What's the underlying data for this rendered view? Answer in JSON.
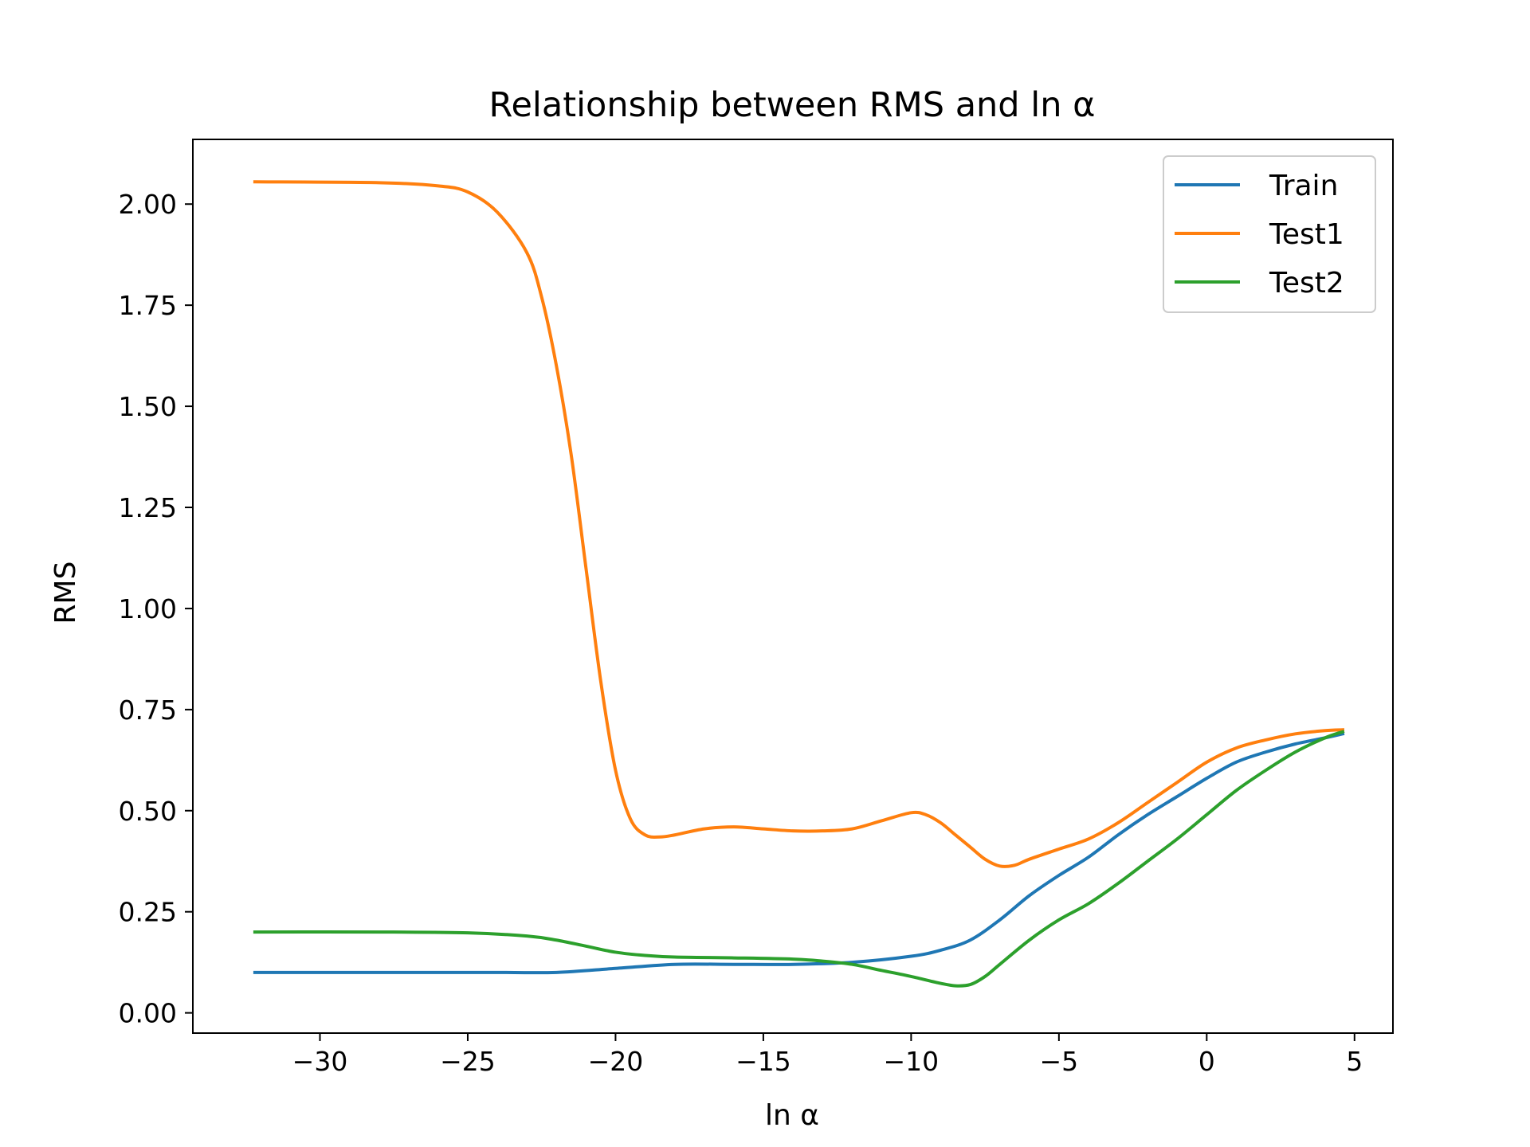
{
  "chart_data": {
    "type": "line",
    "title": "Relationship between RMS and ln α",
    "xlabel": "ln α",
    "ylabel": "RMS",
    "xlim": [
      -34.3,
      6.3
    ],
    "ylim": [
      -0.05,
      2.16
    ],
    "xticks": [
      -30,
      -25,
      -20,
      -15,
      -10,
      -5,
      0,
      5
    ],
    "xtick_labels": [
      "−30",
      "−25",
      "−20",
      "−15",
      "−10",
      "−5",
      "0",
      "5"
    ],
    "yticks": [
      0.0,
      0.25,
      0.5,
      0.75,
      1.0,
      1.25,
      1.5,
      1.75,
      2.0
    ],
    "ytick_labels": [
      "0.00",
      "0.25",
      "0.50",
      "0.75",
      "1.00",
      "1.25",
      "1.50",
      "1.75",
      "2.00"
    ],
    "grid": false,
    "legend_position": "top-right",
    "series": [
      {
        "name": "Train",
        "color": "#1f77b4",
        "x": [
          -32.2,
          -28,
          -24,
          -22,
          -20,
          -18,
          -16,
          -14,
          -12,
          -10,
          -9,
          -8,
          -7,
          -6,
          -5,
          -4,
          -3,
          -2,
          -1,
          0,
          1,
          2,
          3,
          4,
          4.6
        ],
        "y": [
          0.1,
          0.1,
          0.1,
          0.1,
          0.11,
          0.12,
          0.12,
          0.12,
          0.125,
          0.14,
          0.155,
          0.18,
          0.23,
          0.29,
          0.34,
          0.385,
          0.44,
          0.49,
          0.535,
          0.58,
          0.62,
          0.645,
          0.665,
          0.68,
          0.69
        ]
      },
      {
        "name": "Test1",
        "color": "#ff7f0e",
        "x": [
          -32.2,
          -28,
          -26,
          -25,
          -24,
          -23,
          -22.5,
          -22,
          -21.5,
          -21,
          -20.5,
          -20,
          -19.5,
          -19,
          -18.5,
          -18,
          -17,
          -16,
          -15,
          -14,
          -13,
          -12,
          -11,
          -10,
          -9.5,
          -9,
          -8.5,
          -8,
          -7.5,
          -7,
          -6.5,
          -6,
          -5,
          -4,
          -3,
          -2,
          -1,
          0,
          1,
          2,
          3,
          4,
          4.6
        ],
        "y": [
          2.055,
          2.053,
          2.045,
          2.03,
          1.98,
          1.88,
          1.77,
          1.6,
          1.38,
          1.1,
          0.82,
          0.6,
          0.48,
          0.44,
          0.435,
          0.44,
          0.455,
          0.46,
          0.455,
          0.45,
          0.45,
          0.455,
          0.475,
          0.495,
          0.49,
          0.47,
          0.44,
          0.41,
          0.38,
          0.363,
          0.365,
          0.38,
          0.405,
          0.43,
          0.47,
          0.52,
          0.57,
          0.62,
          0.655,
          0.675,
          0.69,
          0.698,
          0.7
        ]
      },
      {
        "name": "Test2",
        "color": "#2ca02c",
        "x": [
          -32.2,
          -28,
          -25,
          -23,
          -22,
          -21,
          -20,
          -19,
          -18,
          -16,
          -14,
          -13,
          -12,
          -11,
          -10,
          -9,
          -8.5,
          -8,
          -7.5,
          -7,
          -6,
          -5,
          -4,
          -3,
          -2,
          -1,
          0,
          1,
          2,
          3,
          4,
          4.6
        ],
        "y": [
          0.2,
          0.2,
          0.198,
          0.19,
          0.18,
          0.165,
          0.15,
          0.142,
          0.138,
          0.136,
          0.133,
          0.128,
          0.12,
          0.105,
          0.09,
          0.073,
          0.067,
          0.07,
          0.09,
          0.12,
          0.18,
          0.23,
          0.27,
          0.32,
          0.375,
          0.43,
          0.49,
          0.55,
          0.6,
          0.645,
          0.68,
          0.695
        ]
      }
    ]
  }
}
